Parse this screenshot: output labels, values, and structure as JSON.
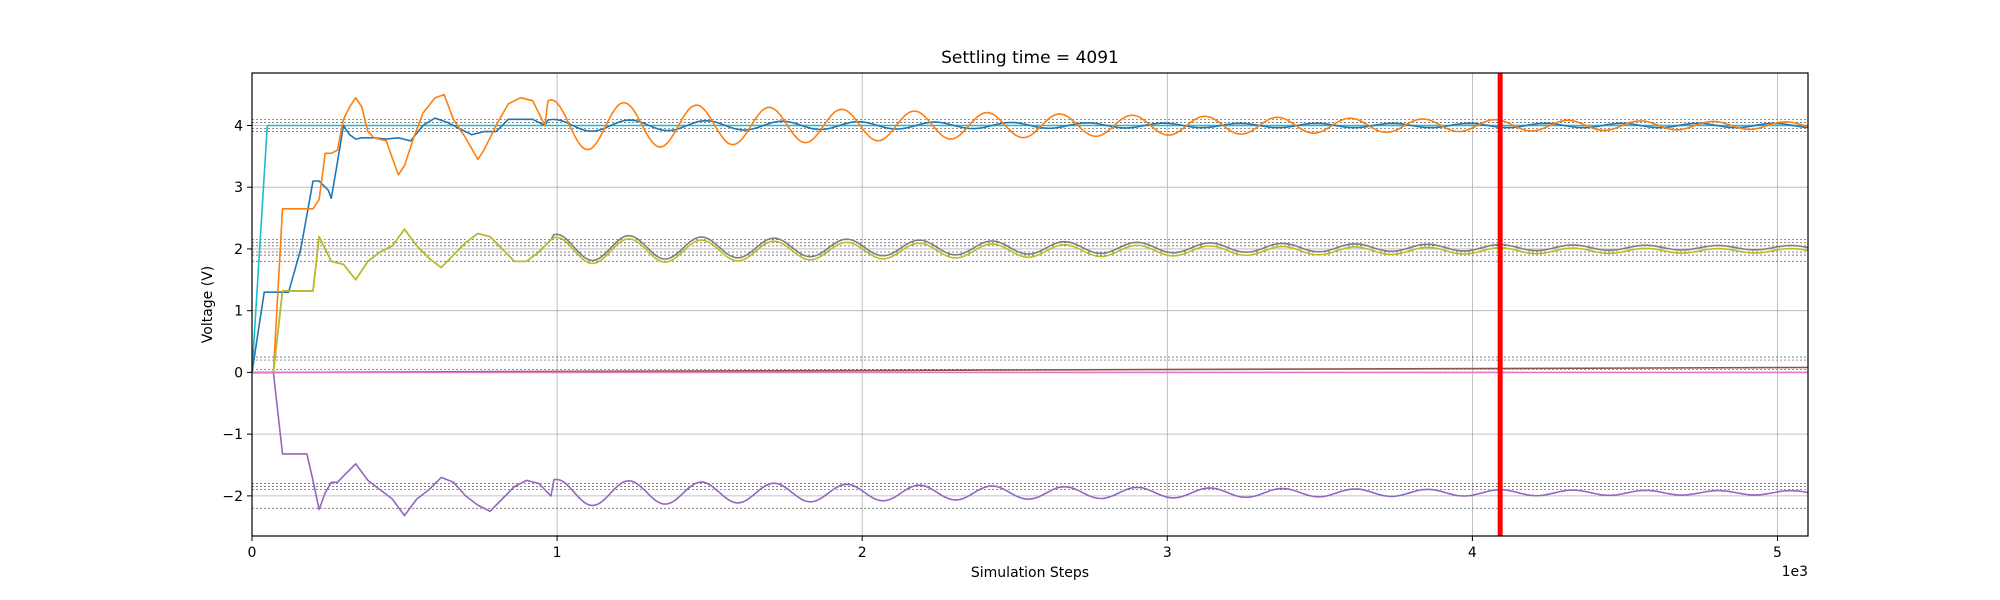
{
  "chart_data": {
    "type": "line",
    "title": "Settling time = 4091",
    "xlabel": "Simulation Steps",
    "ylabel": "Voltage (V)",
    "x_multiplier_label": "1e3",
    "xlim": [
      0,
      5.1
    ],
    "ylim": [
      -2.65,
      4.85
    ],
    "x_ticks": [
      0,
      1,
      2,
      3,
      4,
      5
    ],
    "x_tick_labels": [
      "0",
      "1",
      "2",
      "3",
      "4",
      "5"
    ],
    "y_ticks": [
      -2,
      -1,
      0,
      1,
      2,
      3,
      4
    ],
    "y_tick_labels": [
      "−2",
      "−1",
      "0",
      "1",
      "2",
      "3",
      "4"
    ],
    "grid": true,
    "settling_marker": {
      "x": 4.091,
      "color": "#ff0000"
    },
    "tolerance_bands": [
      -2.2,
      -1.9,
      -1.85,
      -1.8,
      0,
      0.05,
      0.2,
      0.25,
      1.8,
      1.9,
      1.95,
      2.05,
      2.1,
      2.15,
      3.9,
      3.95,
      4.05,
      4.1
    ],
    "colors": {
      "blue": "#1f77b4",
      "orange": "#ff7f0e",
      "cyan": "#17becf",
      "olive": "#bcbd22",
      "gray": "#7f7f7f",
      "purple": "#9467bd",
      "brown": "#8c564b",
      "pink": "#e377c2",
      "red": "#ff0000"
    },
    "series": [
      {
        "color": "#17becf",
        "x": [
          0,
          0.05,
          5.1
        ],
        "y": [
          0,
          4.0,
          4.0
        ]
      },
      {
        "color": "#1f77b4",
        "x": [
          0,
          0.04,
          0.08,
          0.12,
          0.16,
          0.2,
          0.22,
          0.25,
          0.26,
          0.28,
          0.3,
          0.32,
          0.34,
          0.36,
          0.4,
          0.44,
          0.48,
          0.52,
          0.56,
          0.6,
          0.64,
          0.68,
          0.72,
          0.76,
          0.8,
          0.84,
          0.88,
          0.92,
          0.96
        ],
        "y": [
          0,
          1.3,
          1.3,
          1.3,
          2.0,
          3.1,
          3.1,
          2.95,
          2.82,
          3.4,
          4.0,
          3.85,
          3.78,
          3.8,
          3.8,
          3.78,
          3.8,
          3.75,
          4.0,
          4.12,
          4.05,
          3.95,
          3.85,
          3.9,
          3.9,
          4.1,
          4.1,
          4.1,
          4.0
        ],
        "osc": {
          "center": 4.0,
          "amp0": 0.1,
          "decay": 0.35,
          "period": 0.25,
          "phase": 0.85
        }
      },
      {
        "color": "#ff7f0e",
        "x": [
          0,
          0.07,
          0.1,
          0.15,
          0.2,
          0.22,
          0.24,
          0.26,
          0.28,
          0.3,
          0.32,
          0.34,
          0.36,
          0.38,
          0.4,
          0.44,
          0.48,
          0.5,
          0.53,
          0.56,
          0.6,
          0.63,
          0.66,
          0.7,
          0.74,
          0.76,
          0.8,
          0.84,
          0.88,
          0.92,
          0.96
        ],
        "y": [
          0,
          0,
          2.65,
          2.65,
          2.65,
          2.8,
          3.55,
          3.55,
          3.6,
          4.1,
          4.3,
          4.45,
          4.3,
          3.9,
          3.8,
          3.75,
          3.2,
          3.35,
          3.8,
          4.2,
          4.45,
          4.5,
          4.1,
          3.8,
          3.45,
          3.6,
          4.0,
          4.35,
          4.45,
          4.4,
          4.0
        ],
        "osc": {
          "center": 4.0,
          "amp0": 0.42,
          "decay": 0.85,
          "period": 0.238,
          "phase": 1.0
        }
      },
      {
        "color": "#7f7f7f",
        "x": [
          0,
          0.07,
          0.1,
          0.15,
          0.2,
          0.22,
          0.26,
          0.3,
          0.34,
          0.38,
          0.42,
          0.46,
          0.5,
          0.54,
          0.58,
          0.62,
          0.66,
          0.7,
          0.74,
          0.78,
          0.82,
          0.86,
          0.9,
          0.94,
          0.98
        ],
        "y": [
          0,
          0,
          1.32,
          1.32,
          1.32,
          2.2,
          1.8,
          1.75,
          1.5,
          1.8,
          1.95,
          2.05,
          2.32,
          2.05,
          1.85,
          1.7,
          1.9,
          2.1,
          2.25,
          2.2,
          2.0,
          1.8,
          1.8,
          1.95,
          2.15
        ],
        "osc": {
          "center": 2.02,
          "amp0": 0.22,
          "decay": 0.85,
          "period": 0.238,
          "phase": 1.1
        }
      },
      {
        "color": "#bcbd22",
        "x": [
          0,
          0.07,
          0.1,
          0.15,
          0.2,
          0.22,
          0.26,
          0.3,
          0.34,
          0.38,
          0.42,
          0.46,
          0.5,
          0.54,
          0.58,
          0.62,
          0.66,
          0.7,
          0.74,
          0.78,
          0.82,
          0.86,
          0.9,
          0.94,
          0.98
        ],
        "y": [
          0,
          0,
          1.32,
          1.32,
          1.32,
          2.2,
          1.8,
          1.75,
          1.5,
          1.8,
          1.95,
          2.05,
          2.32,
          2.05,
          1.85,
          1.7,
          1.9,
          2.1,
          2.25,
          2.2,
          2.0,
          1.8,
          1.8,
          1.95,
          2.15
        ],
        "osc": {
          "center": 1.97,
          "amp0": 0.22,
          "decay": 0.85,
          "period": 0.238,
          "phase": 1.1
        }
      },
      {
        "color": "#9467bd",
        "x": [
          0,
          0.07,
          0.1,
          0.15,
          0.18,
          0.2,
          0.22,
          0.24,
          0.26,
          0.28,
          0.3,
          0.34,
          0.38,
          0.42,
          0.46,
          0.5,
          0.54,
          0.58,
          0.62,
          0.66,
          0.7,
          0.74,
          0.78,
          0.82,
          0.86,
          0.9,
          0.94,
          0.98
        ],
        "y": [
          0,
          0,
          -1.32,
          -1.32,
          -1.32,
          -1.75,
          -2.22,
          -1.95,
          -1.78,
          -1.78,
          -1.68,
          -1.48,
          -1.75,
          -1.9,
          -2.05,
          -2.32,
          -2.05,
          -1.9,
          -1.7,
          -1.78,
          -2.0,
          -2.15,
          -2.25,
          -2.05,
          -1.85,
          -1.75,
          -1.8,
          -2.0
        ],
        "osc": {
          "center": -1.95,
          "amp0": 0.22,
          "decay": 0.85,
          "period": 0.238,
          "phase": 1.1
        }
      },
      {
        "color": "#8c564b",
        "x": [
          0,
          5.1
        ],
        "y": [
          0,
          0.08
        ]
      },
      {
        "color": "#e377c2",
        "x": [
          0,
          5.1
        ],
        "y": [
          0,
          0.0
        ]
      }
    ]
  }
}
